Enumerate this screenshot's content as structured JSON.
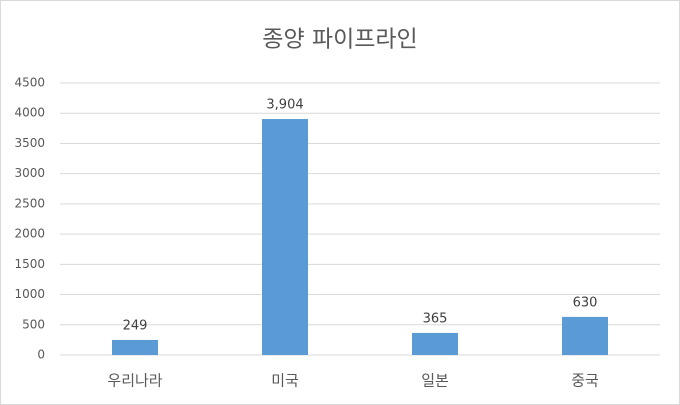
{
  "chart_data": {
    "type": "bar",
    "title": "종양 파이프라인",
    "categories": [
      "우리나라",
      "미국",
      "일본",
      "중국"
    ],
    "values": [
      249,
      3904,
      365,
      630
    ],
    "value_labels": [
      "249",
      "3,904",
      "365",
      "630"
    ],
    "color": "#5b9bd5",
    "ylim": [
      0,
      4500
    ],
    "yticks": [
      0,
      500,
      1000,
      1500,
      2000,
      2500,
      3000,
      3500,
      4000,
      4500
    ],
    "grid": true
  }
}
